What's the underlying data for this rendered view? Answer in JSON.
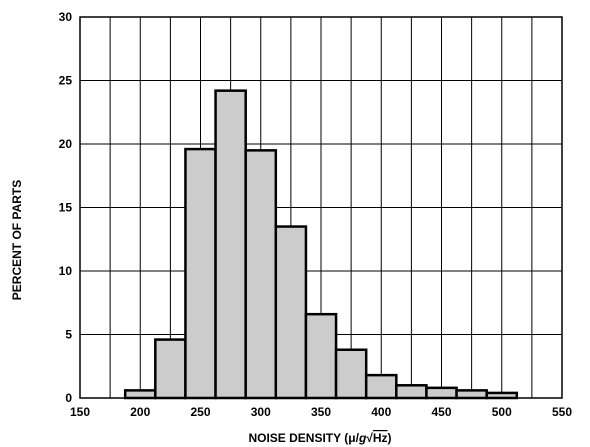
{
  "chart_data": {
    "type": "bar",
    "xlabel": "NOISE DENSITY (μ/g√Hz)",
    "xlabel_parts": {
      "prefix": "NOISE DENSITY (",
      "mu": "μ",
      "slash": "/",
      "g": "g",
      "sqrt": "√",
      "hz": "Hz",
      "suffix": ")"
    },
    "ylabel": "PERCENT OF PARTS",
    "xlim": [
      150,
      550
    ],
    "ylim": [
      0,
      30
    ],
    "x_ticks": [
      150,
      200,
      250,
      300,
      350,
      400,
      450,
      500,
      550
    ],
    "y_ticks": [
      0,
      5,
      10,
      15,
      20,
      25,
      30
    ],
    "x_tick_labels": [
      "150",
      "200",
      "250",
      "300",
      "350",
      "400",
      "450",
      "500",
      "550"
    ],
    "y_tick_labels": [
      "0",
      "5",
      "10",
      "15",
      "20",
      "25",
      "30"
    ],
    "grid": true,
    "bin_width": 25,
    "bins": [
      {
        "x": 200,
        "value": 0.6
      },
      {
        "x": 225,
        "value": 4.6
      },
      {
        "x": 250,
        "value": 19.6
      },
      {
        "x": 275,
        "value": 24.2
      },
      {
        "x": 300,
        "value": 19.5
      },
      {
        "x": 325,
        "value": 13.5
      },
      {
        "x": 350,
        "value": 6.6
      },
      {
        "x": 375,
        "value": 3.8
      },
      {
        "x": 400,
        "value": 1.8
      },
      {
        "x": 425,
        "value": 1.0
      },
      {
        "x": 450,
        "value": 0.8
      },
      {
        "x": 475,
        "value": 0.6
      },
      {
        "x": 500,
        "value": 0.4
      }
    ],
    "colors": {
      "bar_fill": "#cccccc",
      "bar_stroke": "#000000",
      "grid": "#000000"
    }
  }
}
